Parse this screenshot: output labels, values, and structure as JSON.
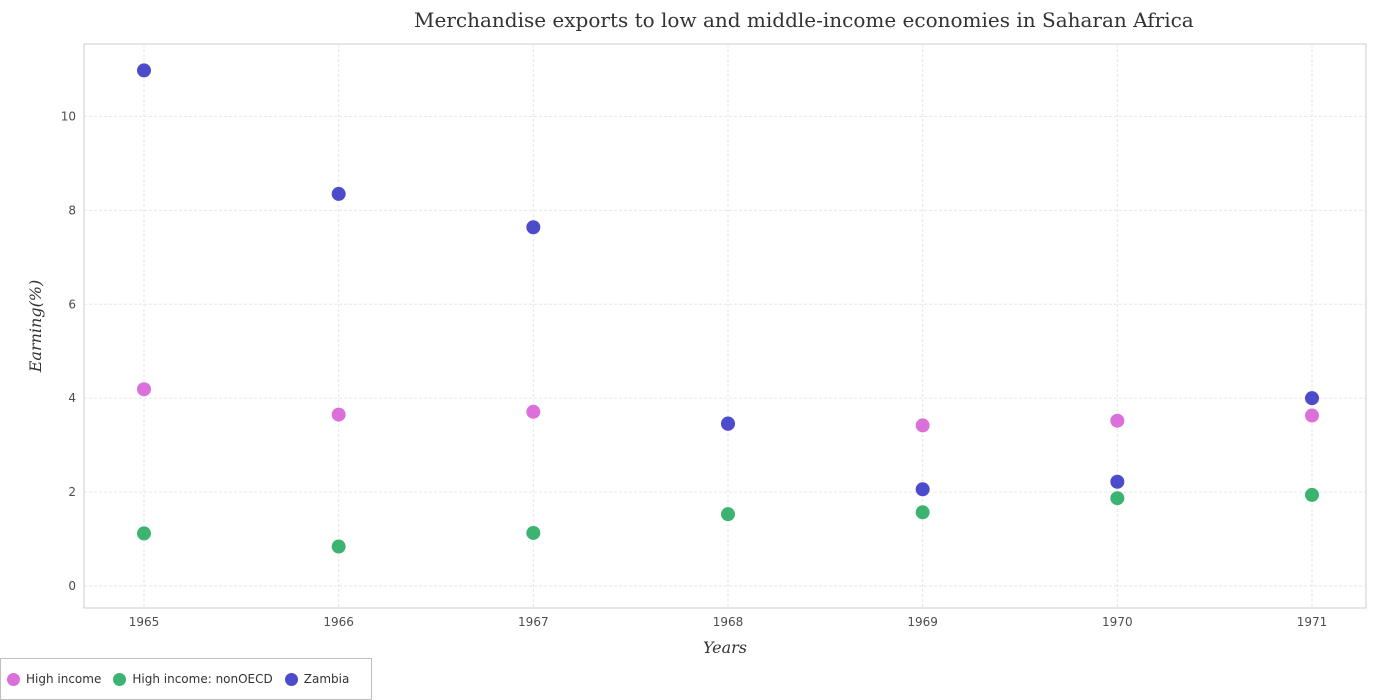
{
  "chart_data": {
    "type": "scatter",
    "title": "Merchandise exports to low and middle-income economies in Saharan Africa",
    "xlabel": "Years",
    "ylabel": "Earning(%)",
    "categories": [
      "1965",
      "1966",
      "1967",
      "1968",
      "1969",
      "1970",
      "1971"
    ],
    "ylim": [
      0,
      11.5
    ],
    "yticks": [
      0,
      2,
      4,
      6,
      8,
      10
    ],
    "ytick_labels": [
      "0",
      "2",
      "4",
      "6",
      "8",
      "10"
    ],
    "grid": true,
    "legend_position": "bottom-left",
    "series": [
      {
        "name": "High income",
        "color": "#db70db",
        "values": [
          4.19,
          3.65,
          3.71,
          3.45,
          3.42,
          3.52,
          3.63
        ]
      },
      {
        "name": "High income: nonOECD",
        "color": "#3cb371",
        "values": [
          1.12,
          0.84,
          1.13,
          1.53,
          1.57,
          1.87,
          1.94
        ]
      },
      {
        "name": "Zambia",
        "color": "#4b4bcc",
        "values": [
          10.98,
          8.35,
          7.64,
          3.46,
          2.06,
          2.22,
          4.0
        ]
      }
    ]
  }
}
